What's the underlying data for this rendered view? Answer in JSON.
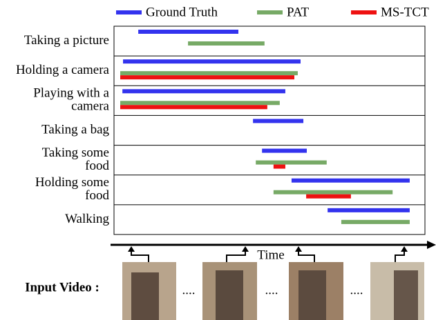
{
  "chart_data": {
    "type": "timeline",
    "categories": [
      [
        "Taking a picture"
      ],
      [
        "Holding a camera"
      ],
      [
        "Playing with a",
        "camera"
      ],
      [
        "Taking a bag"
      ],
      [
        "Taking some",
        "food"
      ],
      [
        "Holding some",
        "food"
      ],
      [
        "Walking"
      ]
    ],
    "xlim": [
      0,
      100
    ],
    "x_label": "Time",
    "series": [
      {
        "name": "Ground Truth",
        "color": "#3333ee",
        "values": [
          [
            7.8,
            40
          ],
          [
            2.9,
            60
          ],
          [
            2.7,
            55.1
          ],
          [
            44.7,
            60.9
          ],
          [
            47.6,
            62
          ],
          [
            57.1,
            95.1
          ],
          [
            68.7,
            95.1
          ]
        ]
      },
      {
        "name": "PAT",
        "color": "#77aa66",
        "values": [
          [
            23.8,
            48.4
          ],
          [
            2,
            59.1
          ],
          [
            2,
            53.3
          ],
          null,
          [
            45.6,
            68.4
          ],
          [
            51.3,
            89.6
          ],
          [
            73.1,
            95.1
          ]
        ]
      },
      {
        "name": "MS-TCT",
        "color": "#ee1111",
        "values": [
          null,
          [
            2,
            58
          ],
          [
            2,
            49.3
          ],
          null,
          [
            51.3,
            55.1
          ],
          [
            61.8,
            76.2
          ],
          null
        ]
      }
    ],
    "input_label": "Input Video :",
    "ellipses": [
      "....",
      "....",
      "...."
    ]
  }
}
